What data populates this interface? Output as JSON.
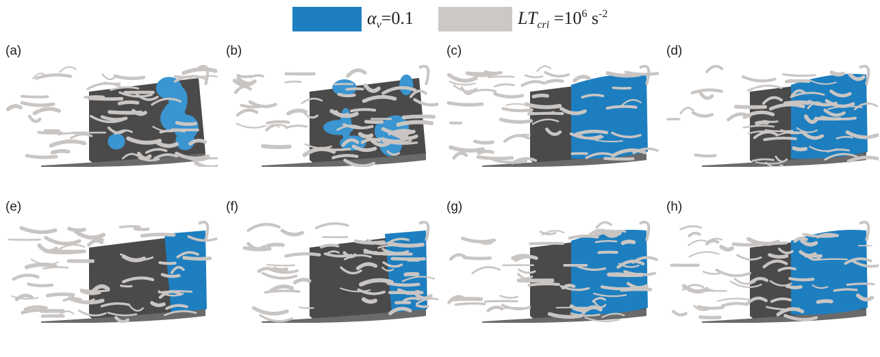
{
  "legend": [
    {
      "parts": [
        "α",
        "v",
        "=0.1"
      ]
    },
    {
      "parts": [
        "LT",
        "cri",
        " =10",
        "6",
        " s",
        "-2"
      ]
    }
  ],
  "panels": [
    "(a)",
    "(b)",
    "(c)",
    "(d)",
    "(e)",
    "(f)",
    "(g)",
    "(h)"
  ]
}
